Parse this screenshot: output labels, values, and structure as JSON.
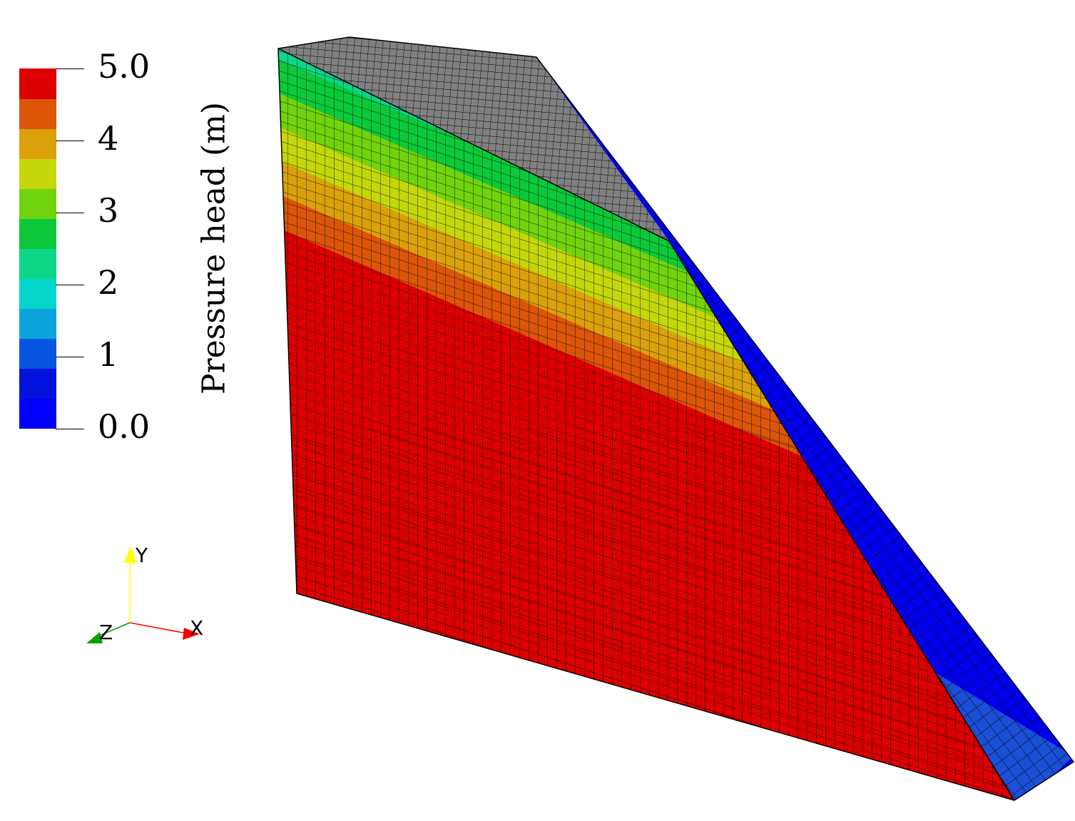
{
  "colorbar": {
    "title": "Pressure head (m)",
    "range": [
      0.0,
      5.0
    ],
    "ticks": [
      {
        "value": 5.0,
        "label": "5.0"
      },
      {
        "value": 4,
        "label": "4"
      },
      {
        "value": 3,
        "label": "3"
      },
      {
        "value": 2,
        "label": "2"
      },
      {
        "value": 1,
        "label": "1"
      },
      {
        "value": 0.0,
        "label": "0.0"
      }
    ],
    "bands": [
      "#0000ff",
      "#0012dc",
      "#0755e0",
      "#0ea3dc",
      "#04d6cc",
      "#0ed687",
      "#0bc93a",
      "#6fd40d",
      "#c3d70a",
      "#dba10b",
      "#dc5508",
      "#dc0000"
    ]
  },
  "mesh": {
    "top_face_color": "#808080",
    "grid_line_color": "#000000"
  },
  "axes": {
    "x_label": "X",
    "y_label": "Y",
    "z_label": "Z",
    "x_color": "#ff0000",
    "y_color": "#ffff00",
    "z_color": "#00a000"
  }
}
